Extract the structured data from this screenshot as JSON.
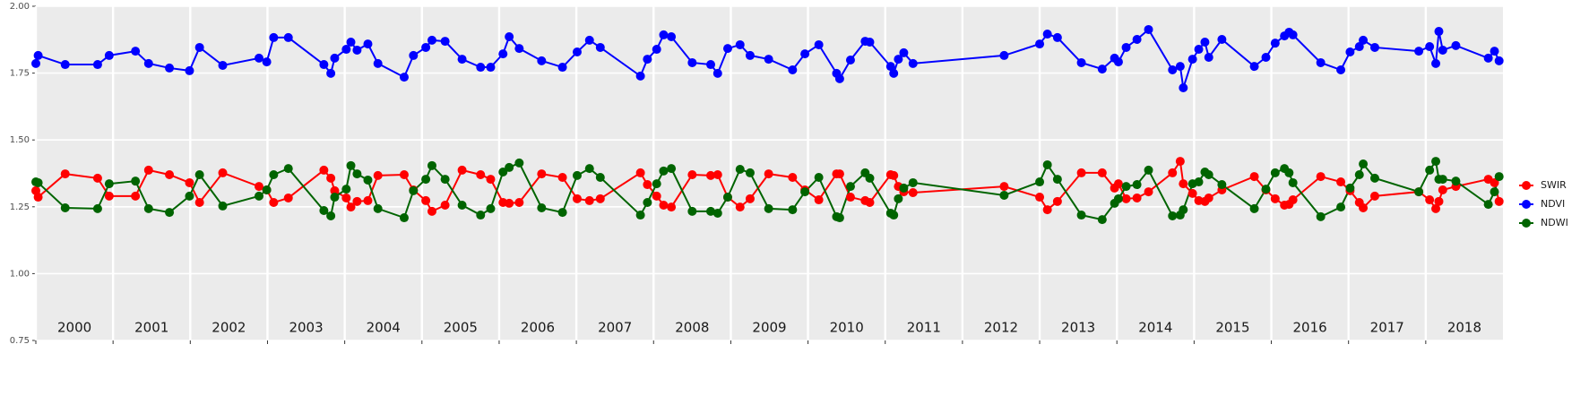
{
  "chart_data": {
    "type": "line",
    "x": [
      2000.0,
      2000.03,
      2000.38,
      2000.8,
      2000.95,
      2001.29,
      2001.46,
      2001.73,
      2001.99,
      2002.12,
      2002.42,
      2002.89,
      2002.99,
      2003.08,
      2003.27,
      2003.73,
      2003.82,
      2003.87,
      2004.02,
      2004.08,
      2004.16,
      2004.3,
      2004.43,
      2004.77,
      2004.89,
      2005.05,
      2005.13,
      2005.3,
      2005.52,
      2005.76,
      2005.89,
      2006.05,
      2006.13,
      2006.26,
      2006.55,
      2006.82,
      2007.01,
      2007.17,
      2007.31,
      2007.83,
      2007.92,
      2008.04,
      2008.13,
      2008.23,
      2008.5,
      2008.74,
      2008.83,
      2008.96,
      2009.12,
      2009.25,
      2009.49,
      2009.8,
      2009.96,
      2010.14,
      2010.37,
      2010.41,
      2010.55,
      2010.74,
      2010.8,
      2011.07,
      2011.11,
      2011.17,
      2011.24,
      2011.36,
      2012.54,
      2013.0,
      2013.1,
      2013.23,
      2013.54,
      2013.81,
      2013.97,
      2014.02,
      2014.12,
      2014.26,
      2014.41,
      2014.72,
      2014.82,
      2014.86,
      2014.98,
      2015.06,
      2015.14,
      2015.19,
      2015.36,
      2015.78,
      2015.93,
      2016.05,
      2016.17,
      2016.23,
      2016.28,
      2016.64,
      2016.9,
      2017.02,
      2017.14,
      2017.19,
      2017.34,
      2017.91,
      2018.05,
      2018.13,
      2018.17,
      2018.22,
      2018.39,
      2018.81,
      2018.89,
      2018.95
    ],
    "series": [
      {
        "name": "SWIR",
        "color": "#ff0000",
        "values": [
          1.31,
          1.286,
          1.373,
          1.357,
          1.29,
          1.29,
          1.387,
          1.37,
          1.34,
          1.266,
          1.377,
          1.326,
          1.313,
          1.266,
          1.283,
          1.387,
          1.357,
          1.31,
          1.283,
          1.249,
          1.27,
          1.273,
          1.367,
          1.37,
          1.313,
          1.273,
          1.233,
          1.256,
          1.387,
          1.37,
          1.353,
          1.266,
          1.263,
          1.266,
          1.373,
          1.36,
          1.28,
          1.273,
          1.28,
          1.377,
          1.333,
          1.29,
          1.256,
          1.249,
          1.37,
          1.367,
          1.37,
          1.286,
          1.249,
          1.28,
          1.373,
          1.36,
          1.313,
          1.276,
          1.373,
          1.373,
          1.286,
          1.273,
          1.266,
          1.37,
          1.367,
          1.326,
          1.306,
          1.303,
          1.326,
          1.286,
          1.239,
          1.27,
          1.377,
          1.377,
          1.32,
          1.336,
          1.28,
          1.283,
          1.306,
          1.377,
          1.42,
          1.336,
          1.3,
          1.273,
          1.27,
          1.283,
          1.313,
          1.363,
          1.313,
          1.28,
          1.256,
          1.259,
          1.276,
          1.363,
          1.343,
          1.31,
          1.266,
          1.246,
          1.29,
          1.306,
          1.276,
          1.243,
          1.27,
          1.313,
          1.326,
          1.353,
          1.34,
          1.27
        ]
      },
      {
        "name": "NDVI",
        "color": "#0000ff",
        "values": [
          1.786,
          1.816,
          1.782,
          1.782,
          1.816,
          1.832,
          1.786,
          1.769,
          1.759,
          1.846,
          1.779,
          1.806,
          1.792,
          1.883,
          1.883,
          1.782,
          1.749,
          1.806,
          1.839,
          1.866,
          1.836,
          1.859,
          1.786,
          1.735,
          1.816,
          1.846,
          1.873,
          1.869,
          1.802,
          1.772,
          1.772,
          1.822,
          1.886,
          1.842,
          1.796,
          1.772,
          1.829,
          1.873,
          1.846,
          1.739,
          1.802,
          1.839,
          1.893,
          1.886,
          1.789,
          1.782,
          1.749,
          1.842,
          1.856,
          1.816,
          1.802,
          1.762,
          1.822,
          1.856,
          1.749,
          1.729,
          1.799,
          1.869,
          1.866,
          1.775,
          1.749,
          1.802,
          1.826,
          1.786,
          1.816,
          1.859,
          1.896,
          1.883,
          1.789,
          1.765,
          1.806,
          1.792,
          1.846,
          1.876,
          1.913,
          1.762,
          1.775,
          1.695,
          1.802,
          1.839,
          1.866,
          1.809,
          1.876,
          1.775,
          1.809,
          1.862,
          1.889,
          1.903,
          1.893,
          1.789,
          1.762,
          1.829,
          1.849,
          1.873,
          1.846,
          1.832,
          1.849,
          1.786,
          1.906,
          1.836,
          1.853,
          1.806,
          1.832,
          1.796
        ]
      },
      {
        "name": "NDWI",
        "color": "#006400",
        "values": [
          1.343,
          1.34,
          1.246,
          1.243,
          1.336,
          1.346,
          1.243,
          1.229,
          1.29,
          1.37,
          1.253,
          1.29,
          1.313,
          1.37,
          1.393,
          1.236,
          1.216,
          1.286,
          1.316,
          1.404,
          1.373,
          1.35,
          1.243,
          1.209,
          1.31,
          1.353,
          1.404,
          1.353,
          1.256,
          1.219,
          1.243,
          1.38,
          1.397,
          1.414,
          1.246,
          1.229,
          1.367,
          1.393,
          1.36,
          1.219,
          1.266,
          1.336,
          1.384,
          1.393,
          1.233,
          1.233,
          1.226,
          1.286,
          1.39,
          1.377,
          1.243,
          1.239,
          1.306,
          1.36,
          1.213,
          1.209,
          1.326,
          1.377,
          1.357,
          1.226,
          1.219,
          1.28,
          1.32,
          1.34,
          1.293,
          1.343,
          1.407,
          1.353,
          1.219,
          1.202,
          1.263,
          1.28,
          1.326,
          1.333,
          1.387,
          1.216,
          1.219,
          1.239,
          1.336,
          1.343,
          1.38,
          1.37,
          1.333,
          1.243,
          1.316,
          1.377,
          1.393,
          1.377,
          1.34,
          1.213,
          1.249,
          1.32,
          1.37,
          1.41,
          1.357,
          1.306,
          1.387,
          1.42,
          1.353,
          1.353,
          1.346,
          1.259,
          1.306,
          1.363
        ]
      }
    ],
    "xlim": [
      2000,
      2019
    ],
    "xticks": [
      {
        "value": 2000,
        "label": "2000"
      },
      {
        "value": 2001,
        "label": "2001"
      },
      {
        "value": 2002,
        "label": "2002"
      },
      {
        "value": 2003,
        "label": "2003"
      },
      {
        "value": 2004,
        "label": "2004"
      },
      {
        "value": 2005,
        "label": "2005"
      },
      {
        "value": 2006,
        "label": "2006"
      },
      {
        "value": 2007,
        "label": "2007"
      },
      {
        "value": 2008,
        "label": "2008"
      },
      {
        "value": 2009,
        "label": "2009"
      },
      {
        "value": 2010,
        "label": "2010"
      },
      {
        "value": 2011,
        "label": "2011"
      },
      {
        "value": 2012,
        "label": "2012"
      },
      {
        "value": 2013,
        "label": "2013"
      },
      {
        "value": 2014,
        "label": "2014"
      },
      {
        "value": 2015,
        "label": "2015"
      },
      {
        "value": 2016,
        "label": "2016"
      },
      {
        "value": 2017,
        "label": "2017"
      },
      {
        "value": 2018,
        "label": "2018"
      }
    ],
    "ylim": [
      0.75,
      2
    ],
    "yticks": [
      {
        "value": 0.75,
        "label": "0.75"
      },
      {
        "value": 1,
        "label": "1.00"
      },
      {
        "value": 1.25,
        "label": "1.25"
      },
      {
        "value": 1.5,
        "label": "1.50"
      },
      {
        "value": 1.75,
        "label": "1.75"
      },
      {
        "value": 2,
        "label": "2.00"
      }
    ],
    "grid": true,
    "legend": "right"
  }
}
